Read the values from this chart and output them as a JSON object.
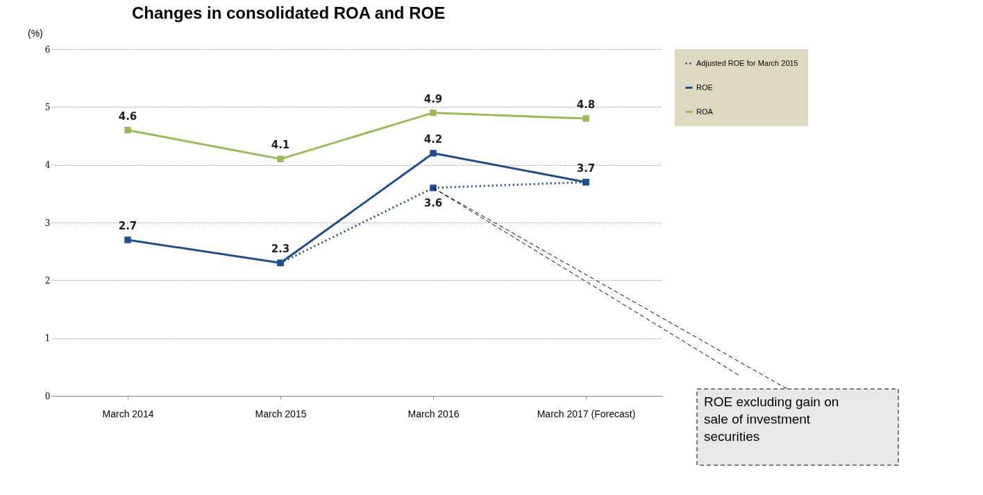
{
  "chart_data": {
    "type": "line",
    "title": "Changes in consolidated ROA and ROE",
    "ylabel": "(%)",
    "categories": [
      "March 2014",
      "March 2015",
      "March 2016",
      "March 2017 (Forecast)"
    ],
    "series": [
      {
        "name": "Adjusted ROE for March 2015",
        "color": "#1f4e8c",
        "line_style": "dotted",
        "values": [
          null,
          2.3,
          3.6,
          3.7
        ],
        "value_labels": [
          null,
          null,
          "3.6",
          null
        ]
      },
      {
        "name": "ROE",
        "color": "#1f4e8c",
        "line_style": "solid",
        "values": [
          2.7,
          2.3,
          4.2,
          3.7
        ],
        "value_labels": [
          "2.7",
          "2.3",
          "4.2",
          "3.7"
        ]
      },
      {
        "name": "ROA",
        "color": "#9bbb59",
        "line_style": "solid",
        "values": [
          4.6,
          4.1,
          4.9,
          4.8
        ],
        "value_labels": [
          "4.6",
          "4.1",
          "4.9",
          "4.8"
        ]
      }
    ],
    "ylim": [
      0,
      6
    ],
    "yticks": [
      0,
      1,
      2,
      3,
      4,
      5,
      6
    ],
    "grid": "y",
    "legend": "right",
    "marker": "square",
    "annotations": [
      {
        "text": "ROE excluding gain on sale of investment securities",
        "x": "March 2016",
        "y": 3.6
      }
    ]
  }
}
